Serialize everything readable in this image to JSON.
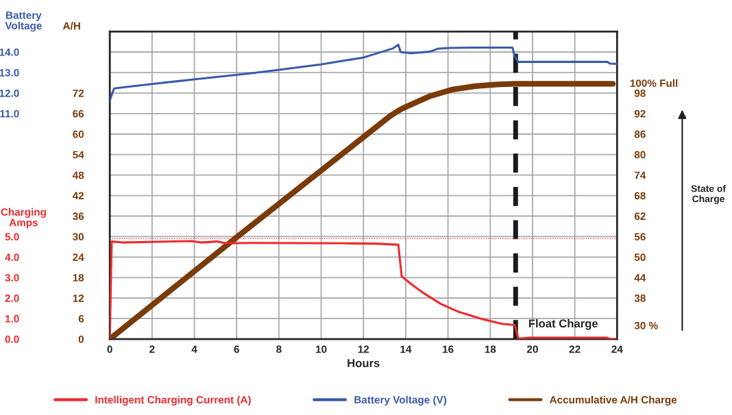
{
  "chart_data": {
    "type": "line",
    "xlabel": "Hours",
    "ylabel": "A/H",
    "y2label": "State of Charge",
    "y3label": "Battery Voltage",
    "xlim": [
      0,
      24
    ],
    "xticks": [
      0,
      2,
      4,
      6,
      8,
      10,
      12,
      14,
      16,
      18,
      20,
      22,
      24
    ],
    "ylim": [
      0,
      90
    ],
    "yticks": [
      0,
      6,
      12,
      18,
      24,
      30,
      36,
      42,
      48,
      54,
      60,
      66,
      72,
      {
        "value": 78,
        "label": null
      },
      {
        "value": 84,
        "label": null
      }
    ],
    "y2lim": [
      26,
      116
    ],
    "y2ticks": [
      {
        "value": 30,
        "label": "30 %"
      },
      38,
      44,
      50,
      56,
      62,
      68,
      74,
      80,
      86,
      92,
      98
    ],
    "y3lim": [
      0,
      15
    ],
    "y3ticks": [
      {
        "value": 0,
        "label": "0.0"
      },
      {
        "value": 1,
        "label": "1.0"
      },
      {
        "value": 2,
        "label": "2.0"
      },
      {
        "value": 3,
        "label": "3.0"
      },
      {
        "value": 4,
        "label": "4.0"
      },
      {
        "value": 5,
        "label": "5.0"
      },
      {
        "value": 11,
        "label": "11.0"
      },
      {
        "value": 12,
        "label": "12.0"
      },
      {
        "value": 13,
        "label": "13.0"
      },
      {
        "value": 14,
        "label": "14.0"
      }
    ],
    "grid": true,
    "legend": "bottom",
    "series": [
      {
        "name": "Intelligent Charging Current (A)",
        "color": "#ee2a2e",
        "axis": "y3",
        "x": [
          0,
          0.09,
          0.6,
          3.87,
          4.3,
          5.06,
          5.5,
          6.7,
          11.1,
          12.7,
          13.65,
          13.7,
          13.81,
          14.35,
          14.79,
          15.65,
          16.5,
          17.6,
          18.57,
          19.16,
          19.33,
          19.81,
          23.54,
          23.65,
          24
        ],
        "values": [
          0,
          4.76,
          4.71,
          4.78,
          4.71,
          4.76,
          4.67,
          4.69,
          4.67,
          4.65,
          4.6,
          4.13,
          3.06,
          2.61,
          2.28,
          1.72,
          1.33,
          0.98,
          0.74,
          0.69,
          0.02,
          0.07,
          0.07,
          0,
          0
        ]
      },
      {
        "name": "Battery Voltage (V)",
        "color": "#3a5bab",
        "axis": "y3",
        "x": [
          0,
          0.06,
          0.2,
          0.63,
          1.98,
          4.03,
          6.47,
          8,
          10,
          12,
          12.3,
          13.38,
          13.65,
          13.76,
          14.25,
          15.16,
          15.54,
          16.08,
          17.16,
          19.05,
          19.16,
          19.33,
          23.54,
          23.65,
          24
        ],
        "values": [
          11.61,
          11.83,
          12.22,
          12.28,
          12.44,
          12.67,
          12.94,
          13.13,
          13.4,
          13.73,
          13.83,
          14.17,
          14.36,
          14.0,
          13.94,
          14.02,
          14.17,
          14.2,
          14.22,
          14.22,
          13.78,
          13.52,
          13.52,
          13.44,
          13.42
        ]
      },
      {
        "name": "Accumulative A/H Charge",
        "color": "#7a3b0a",
        "axis": "y",
        "x": [
          0,
          6.04,
          13.27,
          13.7,
          14.03,
          15.11,
          16.19,
          17.27,
          18.3,
          19.16,
          23.8
        ],
        "values": [
          0,
          30,
          65.3,
          67,
          68,
          71,
          73,
          74,
          74.5,
          74.7,
          74.7
        ]
      }
    ],
    "ref_lines": [
      {
        "axis": "x",
        "value": 19.2,
        "color": "#1a1a1a",
        "line_style": "dashed"
      },
      {
        "axis": "y3",
        "value": 4.9,
        "color": "#ff3030",
        "line_style": "dotted"
      }
    ],
    "annotations": [
      "Float Charge",
      "Charging Amps",
      "100% Full"
    ]
  }
}
